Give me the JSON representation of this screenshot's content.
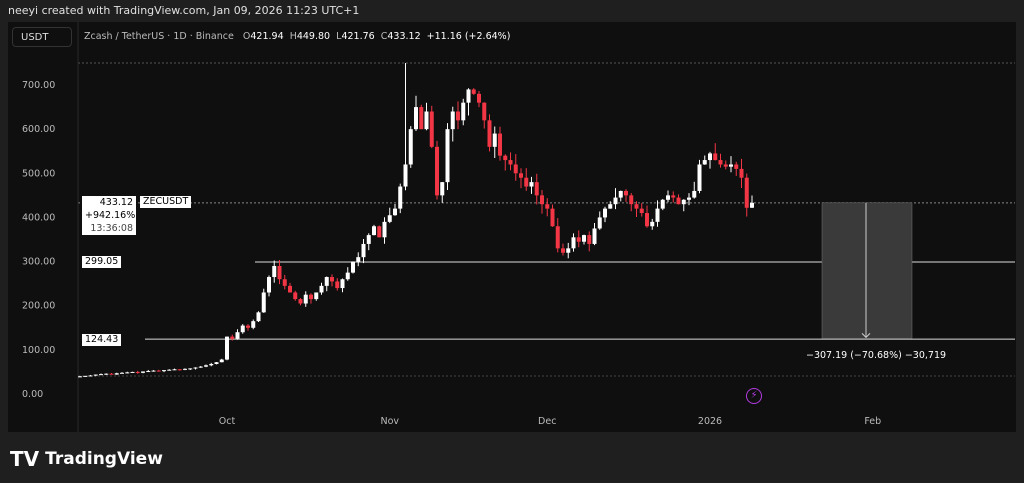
{
  "header": {
    "credit": "neeyi created with TradingView.com, Jan 09, 2026 11:23 UTC+1",
    "currency": "USDT",
    "symbol_desc": "Zcash / TetherUS · 1D · Binance",
    "o_label": "O",
    "o": "421.94",
    "h_label": "H",
    "h": "449.80",
    "l_label": "L",
    "l": "421.76",
    "c_label": "C",
    "c": "433.12",
    "change": "+11.16 (+2.64%)"
  },
  "labels": {
    "price": "433.12",
    "pct": "+942.16%",
    "countdown": "13:36:08",
    "ticker": "ZECUSDT",
    "level1": "299.05",
    "level2": "124.43",
    "measure": "−307.19 (−70.68%) −30,719"
  },
  "footer": {
    "brand": "TradingView"
  },
  "colors": {
    "up": "#ffffff",
    "down": "#f23645",
    "bg": "#0f0f0f"
  },
  "chart_data": {
    "type": "candlestick",
    "title": "Zcash / TetherUS · 1D · Binance",
    "start_date": "2025-09-03",
    "closes": [
      40,
      41,
      42,
      44,
      45,
      46,
      44,
      47,
      48,
      49,
      50,
      48,
      51,
      52,
      53,
      52,
      54,
      55,
      56,
      55,
      57,
      58,
      60,
      62,
      65,
      68,
      72,
      78,
      130,
      125,
      140,
      155,
      150,
      165,
      185,
      230,
      265,
      290,
      260,
      245,
      230,
      215,
      205,
      225,
      215,
      230,
      245,
      265,
      255,
      240,
      260,
      275,
      300,
      310,
      340,
      360,
      380,
      355,
      390,
      405,
      420,
      470,
      520,
      600,
      650,
      600,
      640,
      560,
      450,
      480,
      600,
      640,
      620,
      660,
      690,
      680,
      660,
      620,
      560,
      590,
      540,
      530,
      520,
      500,
      490,
      470,
      480,
      450,
      430,
      420,
      380,
      330,
      320,
      330,
      355,
      345,
      360,
      340,
      375,
      400,
      420,
      430,
      445,
      460,
      450,
      430,
      420,
      410,
      380,
      390,
      420,
      440,
      450,
      445,
      430,
      440,
      445,
      460,
      520,
      530,
      545,
      530,
      520,
      515,
      520,
      510,
      490,
      421.94,
      433.12
    ],
    "yticks": [
      {
        "v": 0,
        "t": "0.00"
      },
      {
        "v": 100,
        "t": "100.00"
      },
      {
        "v": 200,
        "t": "200.00"
      },
      {
        "v": 300,
        "t": "300.00"
      },
      {
        "v": 400,
        "t": "400.00"
      },
      {
        "v": 500,
        "t": "500.00"
      },
      {
        "v": 600,
        "t": "600.00"
      },
      {
        "v": 700,
        "t": "700.00"
      }
    ],
    "xticks": [
      {
        "d": 28,
        "t": "Oct"
      },
      {
        "d": 59,
        "t": "Nov"
      },
      {
        "d": 89,
        "t": "Dec"
      },
      {
        "d": 120,
        "t": "2026"
      },
      {
        "d": 151,
        "t": "Feb"
      }
    ],
    "ylim": [
      0,
      750
    ],
    "levels": [
      299.05,
      124.43
    ],
    "measure": {
      "from": 433.12,
      "to": 125.93,
      "change": -307.19,
      "pct": -70.68
    }
  }
}
